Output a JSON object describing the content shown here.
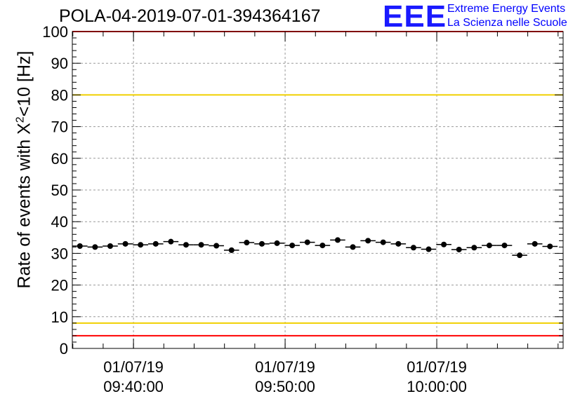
{
  "header": {
    "title": "POLA-04-2019-07-01-394364167",
    "logo_text": "EEE",
    "logo_line1": "Extreme Energy Events",
    "logo_line2": "La Scienza nelle Scuole"
  },
  "colors": {
    "logo": "#1a1aff",
    "yellow_lines": "#f0d000",
    "red_lines": "#ff0000",
    "points": "#000000"
  },
  "chart_data": {
    "type": "scatter",
    "title": "POLA-04-2019-07-01-394364167",
    "ylabel": "Rate of events with X²<10 [Hz]",
    "ylabel_main": "Rate of events with X",
    "ylabel_sup": "2",
    "ylabel_end": "<10 [Hz]",
    "ylim": [
      0,
      100
    ],
    "yticks": [
      0,
      10,
      20,
      30,
      40,
      50,
      60,
      70,
      80,
      90,
      100
    ],
    "xlim": [
      "09:35:58",
      "10:08:20"
    ],
    "xticks": [
      {
        "date": "01/07/19",
        "time": "09:40:00"
      },
      {
        "date": "01/07/19",
        "time": "09:50:00"
      },
      {
        "date": "01/07/19",
        "time": "10:00:00"
      }
    ],
    "grid": true,
    "reference_lines": [
      {
        "y": 100,
        "color": "red"
      },
      {
        "y": 80,
        "color": "yellow"
      },
      {
        "y": 8,
        "color": "yellow"
      },
      {
        "y": 4,
        "color": "red"
      }
    ],
    "series": [
      {
        "x": [
          "09:36:28",
          "09:37:28",
          "09:38:28",
          "09:39:28",
          "09:40:28",
          "09:41:28",
          "09:42:28",
          "09:43:28",
          "09:44:28",
          "09:45:28",
          "09:46:28",
          "09:47:28",
          "09:48:28",
          "09:49:28",
          "09:50:28",
          "09:51:28",
          "09:52:28",
          "09:53:28",
          "09:54:28",
          "09:55:28",
          "09:56:28",
          "09:57:28",
          "09:58:28",
          "09:59:28",
          "10:00:28",
          "10:01:28",
          "10:02:28",
          "10:03:28",
          "10:04:28",
          "10:05:28",
          "10:06:28",
          "10:07:28"
        ],
        "values": [
          32.3,
          32.0,
          32.3,
          33.0,
          32.7,
          33.0,
          33.7,
          32.7,
          32.7,
          32.4,
          31.0,
          33.4,
          33.0,
          33.2,
          32.5,
          33.5,
          32.5,
          34.2,
          32.0,
          34.0,
          33.5,
          33.0,
          31.8,
          31.3,
          32.8,
          31.2,
          31.8,
          32.5,
          32.5,
          29.4,
          33.0,
          32.2
        ]
      }
    ]
  }
}
